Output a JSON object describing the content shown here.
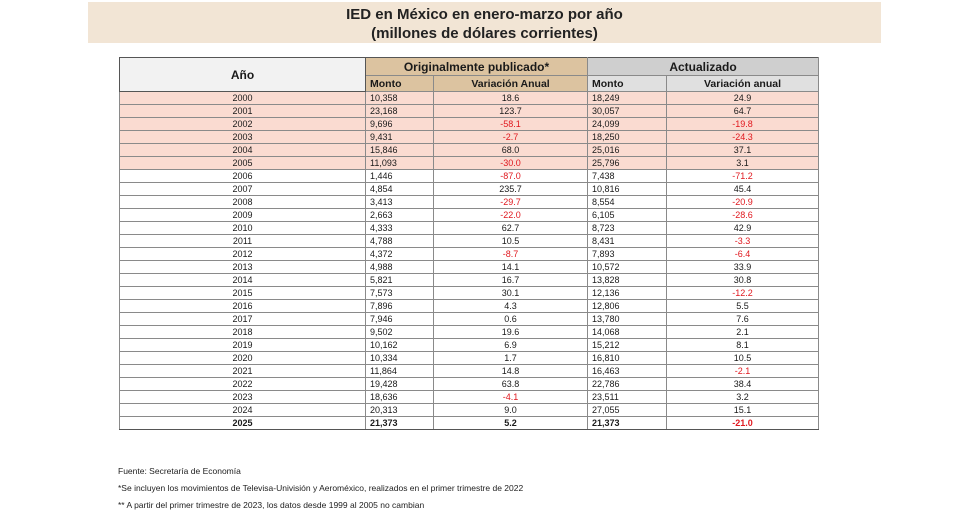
{
  "title": {
    "line1": "IED en México en enero-marzo por año",
    "line2": "(millones de dólares corrientes)"
  },
  "headers": {
    "year": "Año",
    "original_group": "Originalmente publicado*",
    "updated_group": "Actualizado",
    "original_amount": "Monto",
    "original_change": "Variación Anual",
    "updated_amount": "Monto",
    "updated_change": "Variación anual"
  },
  "rows": [
    {
      "year": "2000",
      "orig_monto": "10,358",
      "orig_var": "18.6",
      "act_monto": "18,249",
      "act_var": "24.9"
    },
    {
      "year": "2001",
      "orig_monto": "23,168",
      "orig_var": "123.7",
      "act_monto": "30,057",
      "act_var": "64.7"
    },
    {
      "year": "2002",
      "orig_monto": "9,696",
      "orig_var": "-58.1",
      "act_monto": "24,099",
      "act_var": "-19.8"
    },
    {
      "year": "2003",
      "orig_monto": "9,431",
      "orig_var": "-2.7",
      "act_monto": "18,250",
      "act_var": "-24.3"
    },
    {
      "year": "2004",
      "orig_monto": "15,846",
      "orig_var": "68.0",
      "act_monto": "25,016",
      "act_var": "37.1"
    },
    {
      "year": "2005",
      "orig_monto": "11,093",
      "orig_var": "-30.0",
      "act_monto": "25,796",
      "act_var": "3.1"
    },
    {
      "year": "2006",
      "orig_monto": "1,446",
      "orig_var": "-87.0",
      "act_monto": "7,438",
      "act_var": "-71.2"
    },
    {
      "year": "2007",
      "orig_monto": "4,854",
      "orig_var": "235.7",
      "act_monto": "10,816",
      "act_var": "45.4"
    },
    {
      "year": "2008",
      "orig_monto": "3,413",
      "orig_var": "-29.7",
      "act_monto": "8,554",
      "act_var": "-20.9"
    },
    {
      "year": "2009",
      "orig_monto": "2,663",
      "orig_var": "-22.0",
      "act_monto": "6,105",
      "act_var": "-28.6"
    },
    {
      "year": "2010",
      "orig_monto": "4,333",
      "orig_var": "62.7",
      "act_monto": "8,723",
      "act_var": "42.9"
    },
    {
      "year": "2011",
      "orig_monto": "4,788",
      "orig_var": "10.5",
      "act_monto": "8,431",
      "act_var": "-3.3"
    },
    {
      "year": "2012",
      "orig_monto": "4,372",
      "orig_var": "-8.7",
      "act_monto": "7,893",
      "act_var": "-6.4"
    },
    {
      "year": "2013",
      "orig_monto": "4,988",
      "orig_var": "14.1",
      "act_monto": "10,572",
      "act_var": "33.9"
    },
    {
      "year": "2014",
      "orig_monto": "5,821",
      "orig_var": "16.7",
      "act_monto": "13,828",
      "act_var": "30.8"
    },
    {
      "year": "2015",
      "orig_monto": "7,573",
      "orig_var": "30.1",
      "act_monto": "12,136",
      "act_var": "-12.2"
    },
    {
      "year": "2016",
      "orig_monto": "7,896",
      "orig_var": "4.3",
      "act_monto": "12,806",
      "act_var": "5.5"
    },
    {
      "year": "2017",
      "orig_monto": "7,946",
      "orig_var": "0.6",
      "act_monto": "13,780",
      "act_var": "7.6"
    },
    {
      "year": "2018",
      "orig_monto": "9,502",
      "orig_var": "19.6",
      "act_monto": "14,068",
      "act_var": "2.1"
    },
    {
      "year": "2019",
      "orig_monto": "10,162",
      "orig_var": "6.9",
      "act_monto": "15,212",
      "act_var": "8.1"
    },
    {
      "year": "2020",
      "orig_monto": "10,334",
      "orig_var": "1.7",
      "act_monto": "16,810",
      "act_var": "10.5"
    },
    {
      "year": "2021",
      "orig_monto": "11,864",
      "orig_var": "14.8",
      "act_monto": "16,463",
      "act_var": "-2.1"
    },
    {
      "year": "2022",
      "orig_monto": "19,428",
      "orig_var": "63.8",
      "act_monto": "22,786",
      "act_var": "38.4"
    },
    {
      "year": "2023",
      "orig_monto": "18,636",
      "orig_var": "-4.1",
      "act_monto": "23,511",
      "act_var": "3.2"
    },
    {
      "year": "2024",
      "orig_monto": "20,313",
      "orig_var": "9.0",
      "act_monto": "27,055",
      "act_var": "15.1"
    },
    {
      "year": "2025",
      "orig_monto": "21,373",
      "orig_var": "5.2",
      "act_monto": "21,373",
      "act_var": "-21.0"
    }
  ],
  "notes": [
    "Fuente: Secretaría de Economía",
    "*Se incluyen los movimientos de Televisa-Univisión y Aeroméxico, realizados en el primer trimestre de 2022",
    "** A partir del primer trimestre de 2023, los datos desde 1999 al 2005 no cambian"
  ],
  "colors": {
    "title_bg": "#f2e5d5",
    "original_header_bg": "#dcc3a0",
    "updated_header_bg": "#cfcfcf",
    "highlight_row_bg": "#fadbd1",
    "negative_text": "#e0181e"
  }
}
